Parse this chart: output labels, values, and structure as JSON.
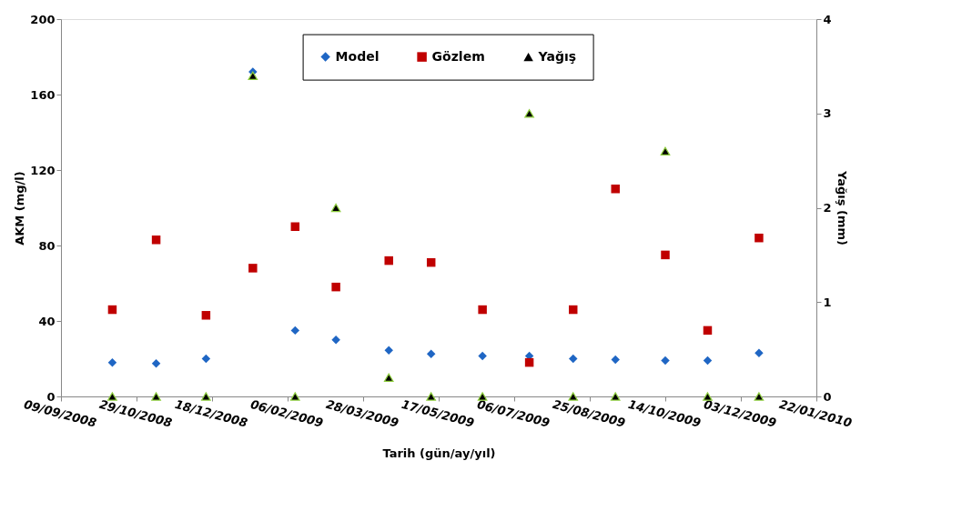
{
  "chart_data": {
    "type": "scatter",
    "xlabel": "Tarih (gün/ay/yıl)",
    "ylabel": "AKM (mg/l)",
    "y2label": "Yağış (mm)",
    "x": [
      "2008-10-13",
      "2008-11-11",
      "2008-12-14",
      "2009-01-14",
      "2009-02-11",
      "2009-03-10",
      "2009-04-14",
      "2009-05-12",
      "2009-06-15",
      "2009-07-16",
      "2009-08-14",
      "2009-09-11",
      "2009-10-14",
      "2009-11-11",
      "2009-12-15"
    ],
    "series": [
      {
        "name": "Model",
        "color": "#1f66c4",
        "marker": "diamond",
        "values": [
          18,
          17.5,
          20,
          172,
          35,
          30,
          24.5,
          22.5,
          21.5,
          21.5,
          20,
          19.5,
          19,
          19,
          23
        ]
      },
      {
        "name": "Gözlem",
        "color": "#c00000",
        "marker": "square",
        "values": [
          46,
          83,
          43,
          68,
          90,
          58,
          72,
          71,
          46,
          18,
          46,
          110,
          75,
          35,
          84
        ]
      },
      {
        "name": "Yağış",
        "color": "#000000",
        "marker": "triangle",
        "axis": "y2",
        "values": [
          0,
          0,
          0,
          3.4,
          0,
          2,
          0.2,
          0,
          0,
          3,
          0,
          0,
          2.6,
          0,
          0
        ]
      }
    ],
    "xlim": [
      "2008-09-09",
      "2010-01-22"
    ],
    "xticks": [
      {
        "value": "2008-09-09",
        "label": "09/09/2008"
      },
      {
        "value": "2008-10-29",
        "label": "29/10/2008"
      },
      {
        "value": "2008-12-18",
        "label": "18/12/2008"
      },
      {
        "value": "2009-02-06",
        "label": "06/02/2009"
      },
      {
        "value": "2009-03-28",
        "label": "28/03/2009"
      },
      {
        "value": "2009-05-17",
        "label": "17/05/2009"
      },
      {
        "value": "2009-07-06",
        "label": "06/07/2009"
      },
      {
        "value": "2009-08-25",
        "label": "25/08/2009"
      },
      {
        "value": "2009-10-14",
        "label": "14/10/2009"
      },
      {
        "value": "2009-12-03",
        "label": "03/12/2009"
      },
      {
        "value": "2010-01-22",
        "label": "22/01/2010"
      }
    ],
    "ylim": [
      0,
      200
    ],
    "yticks": [
      0,
      40,
      80,
      120,
      160,
      200
    ],
    "y2lim": [
      0,
      4
    ],
    "y2ticks": [
      0,
      1,
      2,
      3,
      4
    ],
    "legend": "top",
    "grid": false
  }
}
